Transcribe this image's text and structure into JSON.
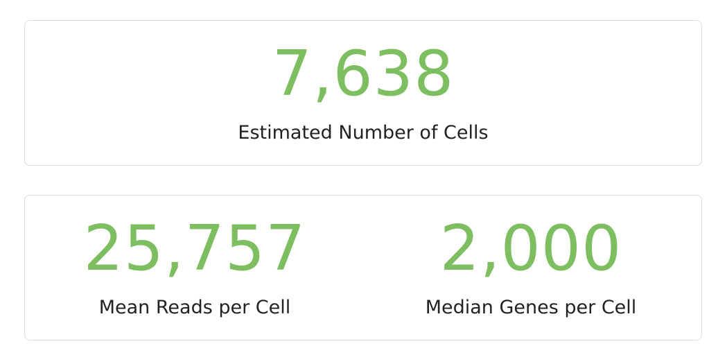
{
  "colors": {
    "value_green": "#7dbf60",
    "label_text": "#222222",
    "card_border": "#dcdcdc"
  },
  "summary": {
    "cells": {
      "value": "7,638",
      "label": "Estimated Number of Cells"
    },
    "reads": {
      "value": "25,757",
      "label": "Mean Reads per Cell"
    },
    "genes": {
      "value": "2,000",
      "label": "Median Genes per Cell"
    }
  }
}
